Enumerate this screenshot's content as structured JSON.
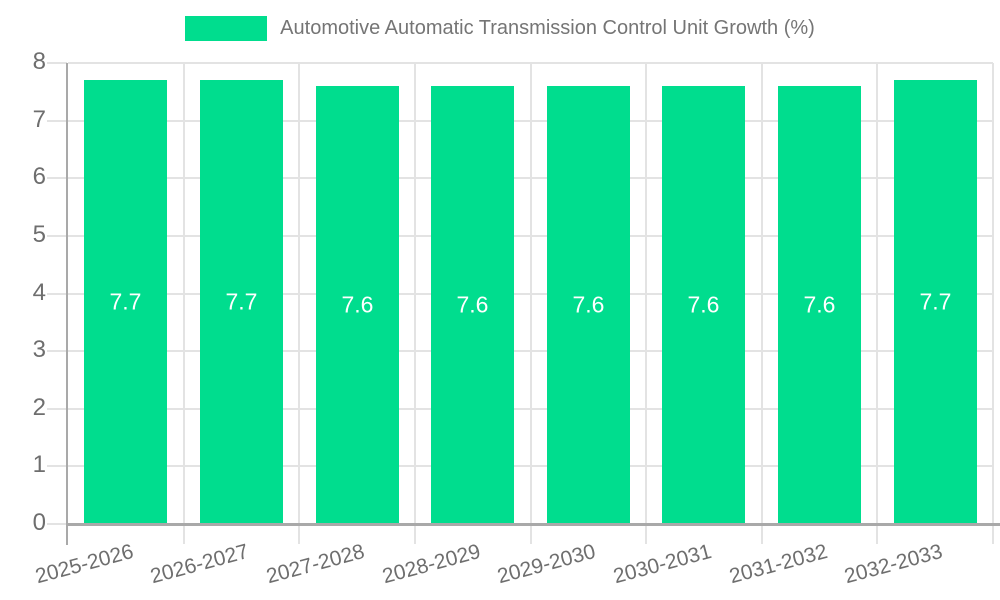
{
  "legend": {
    "label": "Automotive Automatic Transmission Control Unit Growth (%)",
    "swatch_color": "#00DD8E"
  },
  "chart_data": {
    "type": "bar",
    "title": "Automotive Automatic Transmission Control Unit Growth (%)",
    "categories": [
      "2025-2026",
      "2026-2027",
      "2027-2028",
      "2028-2029",
      "2029-2030",
      "2030-2031",
      "2031-2032",
      "2032-2033"
    ],
    "values": [
      7.7,
      7.7,
      7.6,
      7.6,
      7.6,
      7.6,
      7.6,
      7.7
    ],
    "value_labels": [
      "7.7",
      "7.7",
      "7.6",
      "7.6",
      "7.6",
      "7.6",
      "7.6",
      "7.7"
    ],
    "xlabel": "",
    "ylabel": "",
    "ylim": [
      0,
      8
    ],
    "yticks": [
      0,
      1,
      2,
      3,
      4,
      5,
      6,
      7,
      8
    ],
    "grid": true,
    "legend_position": "top-center",
    "bar_label_position": "middle",
    "x_tick_rotation_deg": -15,
    "bar_width_ratio": 0.72
  },
  "colors": {
    "background": "#ffffff",
    "bar": "#00DD8E",
    "bar_label": "#ffffff",
    "grid": "#E3E3E3",
    "axis_line": "#A9A9A9",
    "baseline": "#A9A9A9",
    "tick_label": "#6E6E6E",
    "title_text": "#757575"
  }
}
